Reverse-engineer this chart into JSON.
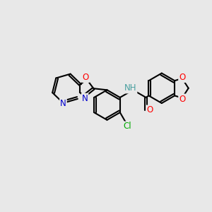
{
  "bg_color": "#e8e8e8",
  "bond_color": "#000000",
  "bond_width": 1.5,
  "dbo": 0.055,
  "atom_colors": {
    "O": "#ff0000",
    "N": "#0000cc",
    "Cl": "#00aa00",
    "H": "#4aa0a0"
  },
  "font_size": 8.5,
  "figsize": [
    3.0,
    3.0
  ],
  "dpi": 100
}
